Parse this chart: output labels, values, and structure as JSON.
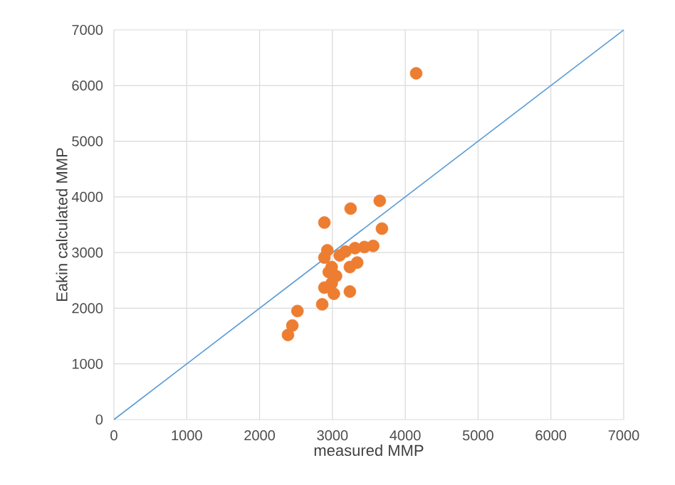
{
  "chart_data": {
    "type": "scatter",
    "xlabel": "measured MMP",
    "ylabel": "Eakin calculated MMP",
    "xlim": [
      0,
      7000
    ],
    "ylim": [
      0,
      7000
    ],
    "xticks": [
      0,
      1000,
      2000,
      3000,
      4000,
      5000,
      6000,
      7000
    ],
    "yticks": [
      0,
      1000,
      2000,
      3000,
      4000,
      5000,
      6000,
      7000
    ],
    "grid": true,
    "marker": "circle",
    "series": [
      {
        "color": "#ed7d31",
        "x": [
          4150,
          3650,
          3250,
          2890,
          3680,
          3560,
          3440,
          3310,
          3180,
          2930,
          2890,
          3340,
          3240,
          2990,
          3050,
          2990,
          2890,
          3020,
          3240,
          2860,
          2520,
          2450,
          2390,
          3100,
          2950
        ],
        "values": [
          6220,
          3930,
          3790,
          3540,
          3430,
          3120,
          3100,
          3080,
          3020,
          3040,
          2910,
          2820,
          2740,
          2740,
          2580,
          2450,
          2370,
          2260,
          2300,
          2070,
          1950,
          1690,
          1520,
          2950,
          2650
        ]
      },
      {
        "type": "line",
        "color": "#5b9bd5",
        "marker": "none",
        "x": [
          0,
          7000
        ],
        "values": [
          0,
          7000
        ]
      }
    ]
  }
}
